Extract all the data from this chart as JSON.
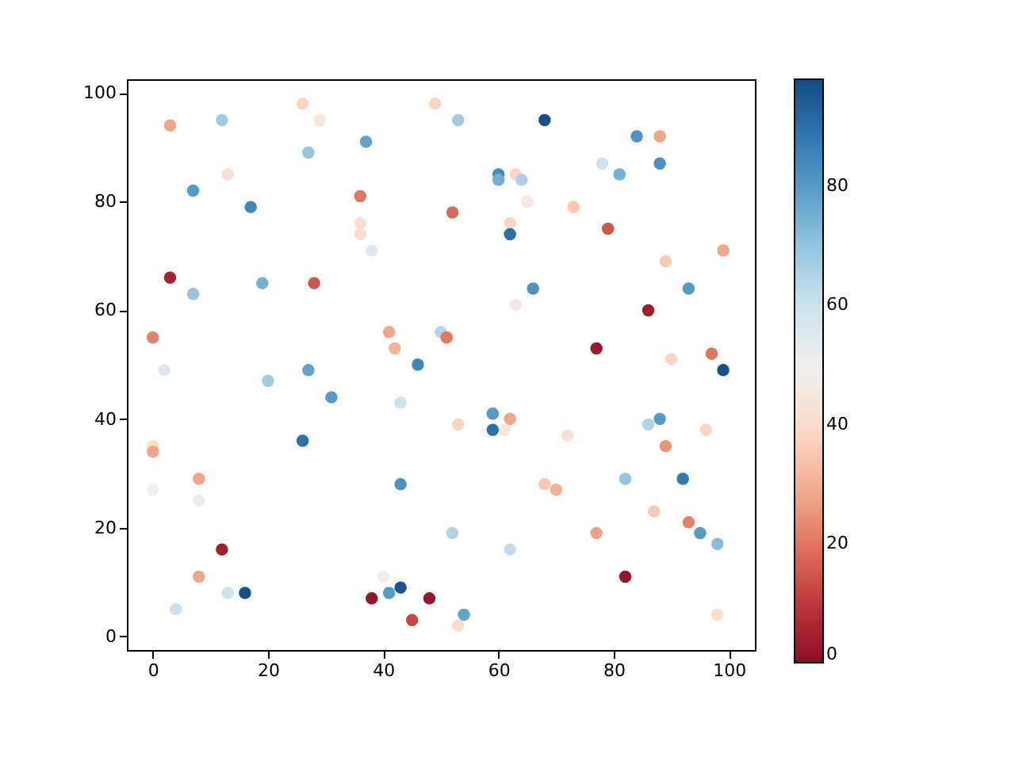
{
  "chart_data": {
    "type": "scatter",
    "x": [
      3,
      12,
      26,
      29,
      27,
      37,
      49,
      53,
      68,
      84,
      88,
      7,
      17,
      13,
      36,
      36,
      36,
      38,
      52,
      60,
      60,
      63,
      64,
      62,
      62,
      65,
      73,
      78,
      81,
      88,
      79,
      3,
      7,
      19,
      28,
      0,
      2,
      20,
      27,
      31,
      41,
      42,
      46,
      50,
      51,
      63,
      66,
      77,
      86,
      89,
      93,
      97,
      99,
      99,
      90,
      86,
      88,
      96,
      89,
      92,
      93,
      95,
      98,
      98,
      87,
      82,
      77,
      82,
      72,
      68,
      70,
      62,
      61,
      59,
      59,
      53,
      43,
      62,
      52,
      54,
      53,
      43,
      26,
      0,
      0,
      0,
      8,
      8,
      4,
      8,
      12,
      13,
      16,
      38,
      40,
      41,
      43,
      48,
      45
    ],
    "values": [
      94,
      95,
      98,
      95,
      89,
      91,
      98,
      95,
      95,
      92,
      92,
      82,
      79,
      85,
      81,
      76,
      74,
      71,
      78,
      85,
      84,
      85,
      84,
      76,
      74,
      80,
      79,
      87,
      85,
      87,
      75,
      66,
      63,
      65,
      65,
      55,
      49,
      47,
      49,
      44,
      56,
      53,
      50,
      56,
      55,
      61,
      64,
      53,
      60,
      69,
      64,
      52,
      71,
      49,
      51,
      39,
      40,
      38,
      35,
      29,
      21,
      19,
      17,
      4,
      23,
      29,
      19,
      11,
      37,
      28,
      27,
      40,
      38,
      41,
      38,
      39,
      43,
      16,
      19,
      4,
      2,
      28,
      36,
      35,
      34,
      27,
      29,
      25,
      5,
      11,
      16,
      8,
      8,
      7,
      11,
      8,
      9,
      7,
      3
    ],
    "cvalues": [
      28,
      68,
      38,
      44,
      70,
      78,
      38,
      68,
      97,
      82,
      28,
      80,
      85,
      42,
      20,
      42,
      40,
      55,
      18,
      84,
      75,
      38,
      66,
      38,
      90,
      45,
      35,
      60,
      75,
      82,
      15,
      5,
      70,
      75,
      15,
      22,
      55,
      68,
      78,
      80,
      28,
      30,
      85,
      65,
      20,
      45,
      82,
      3,
      4,
      35,
      80,
      20,
      28,
      97,
      38,
      65,
      80,
      38,
      25,
      88,
      22,
      80,
      72,
      40,
      35,
      70,
      27,
      2,
      42,
      35,
      30,
      28,
      44,
      80,
      90,
      38,
      60,
      62,
      65,
      78,
      40,
      82,
      90,
      40,
      28,
      50,
      28,
      52,
      60,
      28,
      4,
      60,
      97,
      2,
      48,
      80,
      96,
      2,
      12
    ],
    "xlim": [
      -4.5,
      104.5
    ],
    "ylim": [
      -2.5,
      102.5
    ],
    "xticks": [
      0,
      20,
      40,
      60,
      80,
      100
    ],
    "yticks": [
      0,
      20,
      40,
      60,
      80,
      100
    ],
    "clim": [
      0,
      98
    ],
    "cticks": [
      0,
      20,
      40,
      60,
      80
    ],
    "marker": "circle",
    "grid": false
  }
}
